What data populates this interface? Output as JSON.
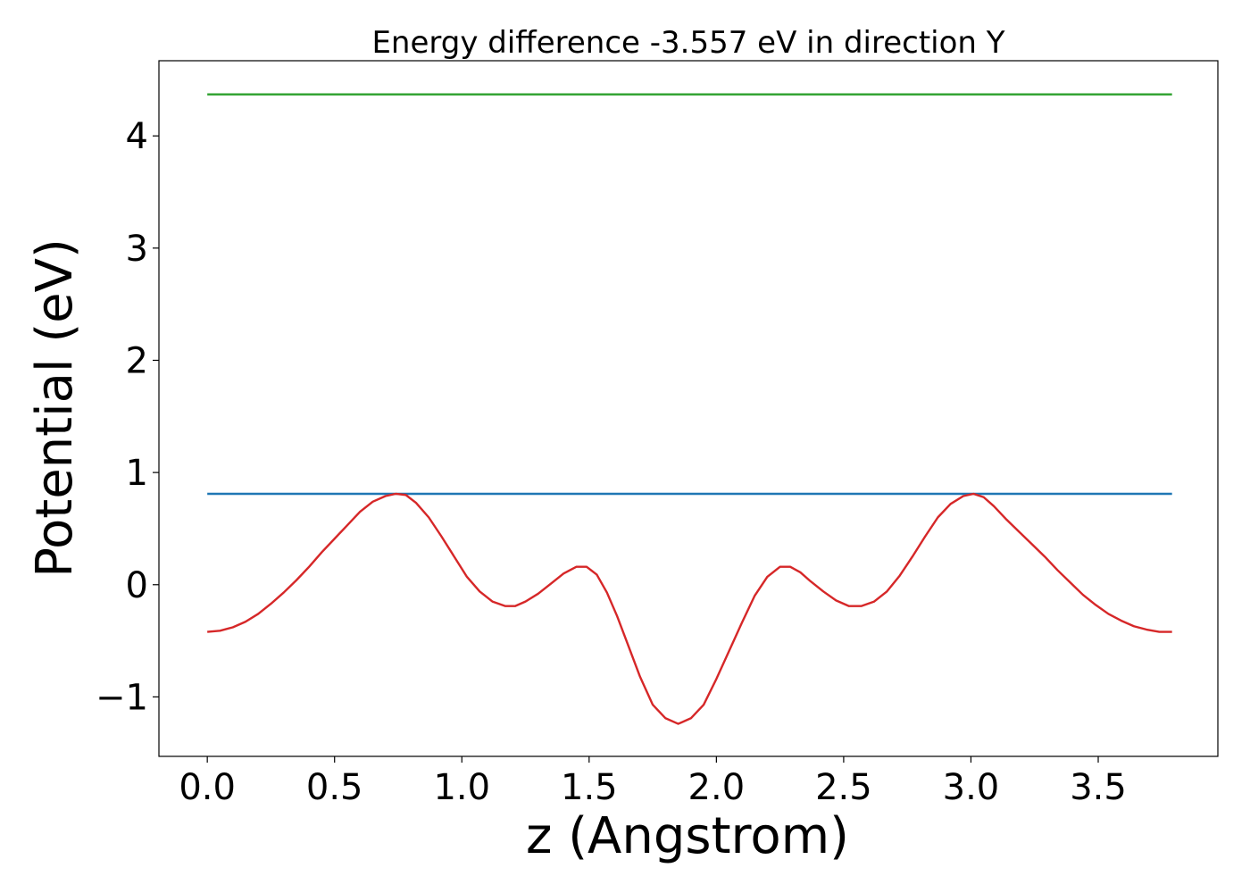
{
  "chart_data": {
    "type": "line",
    "title": "Energy difference -3.557 eV in direction Y",
    "xlabel": "z (Angstrom)",
    "ylabel": "Potential (eV)",
    "xlim": [
      -0.19,
      3.97
    ],
    "ylim": [
      -1.53,
      4.67
    ],
    "xticks": [
      0.0,
      0.5,
      1.0,
      1.5,
      2.0,
      2.5,
      3.0,
      3.5
    ],
    "xtick_labels": [
      "0.0",
      "0.5",
      "1.0",
      "1.5",
      "2.0",
      "2.5",
      "3.0",
      "3.5"
    ],
    "yticks": [
      -1,
      0,
      1,
      2,
      3,
      4
    ],
    "ytick_labels": [
      "−1",
      "0",
      "1",
      "2",
      "3",
      "4"
    ],
    "grid": false,
    "series": [
      {
        "color": "#2ca02c",
        "x": [
          0.0,
          3.79
        ],
        "y": [
          4.37,
          4.37
        ]
      },
      {
        "color": "#1f77b4",
        "x": [
          0.0,
          3.79
        ],
        "y": [
          0.81,
          0.81
        ]
      },
      {
        "color": "#d62728",
        "x": [
          0.0,
          0.05,
          0.1,
          0.15,
          0.2,
          0.25,
          0.3,
          0.35,
          0.4,
          0.45,
          0.5,
          0.55,
          0.6,
          0.65,
          0.7,
          0.74,
          0.78,
          0.82,
          0.87,
          0.92,
          0.97,
          1.02,
          1.07,
          1.12,
          1.17,
          1.21,
          1.25,
          1.3,
          1.35,
          1.4,
          1.45,
          1.49,
          1.53,
          1.57,
          1.61,
          1.65,
          1.7,
          1.75,
          1.8,
          1.85,
          1.9,
          1.95,
          2.0,
          2.05,
          2.1,
          2.15,
          2.2,
          2.25,
          2.29,
          2.33,
          2.37,
          2.42,
          2.47,
          2.52,
          2.57,
          2.62,
          2.67,
          2.72,
          2.77,
          2.82,
          2.87,
          2.92,
          2.97,
          3.01,
          3.05,
          3.09,
          3.14,
          3.19,
          3.24,
          3.29,
          3.34,
          3.39,
          3.44,
          3.49,
          3.54,
          3.59,
          3.64,
          3.69,
          3.74,
          3.79
        ],
        "y": [
          -0.42,
          -0.41,
          -0.38,
          -0.33,
          -0.26,
          -0.17,
          -0.07,
          0.04,
          0.16,
          0.29,
          0.41,
          0.53,
          0.65,
          0.74,
          0.79,
          0.81,
          0.8,
          0.73,
          0.6,
          0.43,
          0.25,
          0.07,
          -0.06,
          -0.15,
          -0.19,
          -0.19,
          -0.15,
          -0.08,
          0.01,
          0.1,
          0.16,
          0.16,
          0.09,
          -0.07,
          -0.28,
          -0.52,
          -0.82,
          -1.07,
          -1.19,
          -1.24,
          -1.19,
          -1.07,
          -0.84,
          -0.59,
          -0.34,
          -0.1,
          0.07,
          0.16,
          0.16,
          0.11,
          0.03,
          -0.06,
          -0.14,
          -0.19,
          -0.19,
          -0.15,
          -0.06,
          0.08,
          0.25,
          0.43,
          0.6,
          0.72,
          0.79,
          0.81,
          0.78,
          0.7,
          0.58,
          0.47,
          0.36,
          0.25,
          0.13,
          0.02,
          -0.09,
          -0.18,
          -0.26,
          -0.32,
          -0.37,
          -0.4,
          -0.42,
          -0.42
        ]
      }
    ]
  }
}
